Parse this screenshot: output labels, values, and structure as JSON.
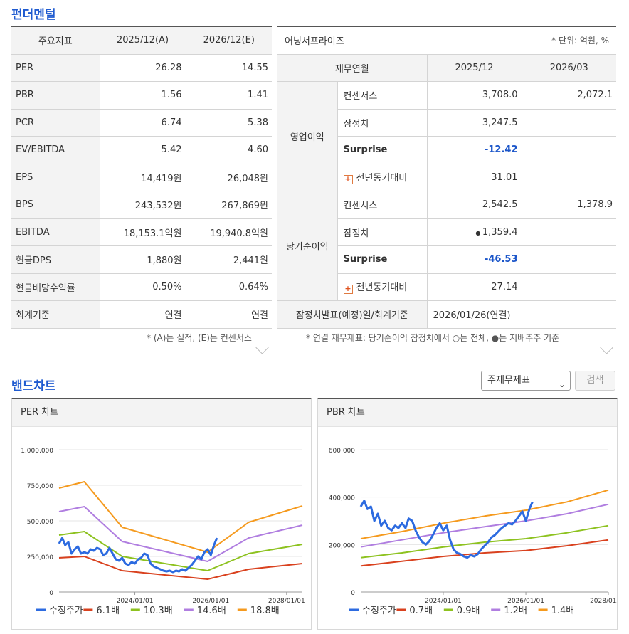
{
  "fundamentals": {
    "title": "펀더멘털",
    "headers": [
      "주요지표",
      "2025/12(A)",
      "2026/12(E)"
    ],
    "rows": [
      [
        "PER",
        "26.28",
        "14.55"
      ],
      [
        "PBR",
        "1.56",
        "1.41"
      ],
      [
        "PCR",
        "6.74",
        "5.38"
      ],
      [
        "EV/EBITDA",
        "5.42",
        "4.60"
      ],
      [
        "EPS",
        "14,419원",
        "26,048원"
      ],
      [
        "BPS",
        "243,532원",
        "267,869원"
      ],
      [
        "EBITDA",
        "18,153.1억원",
        "19,940.8억원"
      ],
      [
        "현금DPS",
        "1,880원",
        "2,441원"
      ],
      [
        "현금배당수익률",
        "0.50%",
        "0.64%"
      ],
      [
        "회계기준",
        "연결",
        "연결"
      ]
    ],
    "note": "* (A)는 실적, (E)는 컨센서스"
  },
  "earnings": {
    "title": "어닝서프라이즈",
    "unit": "* 단위: 억원, %",
    "headers": [
      "재무연월",
      "2025/12",
      "2026/03"
    ],
    "groups": [
      {
        "name": "영업이익",
        "rows": [
          {
            "label": "컨센서스",
            "v1": "3,708.0",
            "v2": "2,072.1"
          },
          {
            "label": "잠정치",
            "v1": "3,247.5",
            "v2": ""
          },
          {
            "label": "Surprise",
            "v1": "-12.42",
            "v2": ""
          },
          {
            "label": "전년동기대비",
            "v1": "31.01",
            "v2": ""
          }
        ]
      },
      {
        "name": "당기순이익",
        "rows": [
          {
            "label": "컨센서스",
            "v1": "2,542.5",
            "v2": "1,378.9"
          },
          {
            "label": "잠정치",
            "v1": "1,359.4",
            "v2": ""
          },
          {
            "label": "Surprise",
            "v1": "-46.53",
            "v2": ""
          },
          {
            "label": "전년동기대비",
            "v1": "27.14",
            "v2": ""
          }
        ]
      }
    ],
    "footer_label": "잠정치발표(예정)일/회계기준",
    "footer_value": "2026/01/26(연결)",
    "note": "* 연결 재무제표: 당기순이익 잠정치에서 ○는 전체, ●는 지배주주 기준"
  },
  "band": {
    "title": "밴드차트",
    "select_value": "주재무제표",
    "search_label": "검색",
    "icons": {
      "dropdown": "chevron-down-icon",
      "expand": "chevron-down-icon",
      "plus": "plus-box-icon"
    }
  },
  "chart_data": [
    {
      "type": "line",
      "title": "PER 차트",
      "ylim": [
        0,
        1000000
      ],
      "y_ticks": [
        "1,000,000",
        "750,000",
        "500,000",
        "250,000",
        "0"
      ],
      "x_ticks": [
        "2024/01/01",
        "2026/01/01",
        "2028/01/01"
      ],
      "x_range": [
        "2022/01/01",
        "2028/06/01"
      ],
      "grid": true,
      "legend_position": "bottom",
      "series": [
        {
          "name": "수정주가",
          "color": "#2d6be0",
          "points": [
            [
              "2022/01/01",
              340000
            ],
            [
              "2022/02/01",
              380000
            ],
            [
              "2022/03/01",
              330000
            ],
            [
              "2022/04/01",
              350000
            ],
            [
              "2022/05/01",
              270000
            ],
            [
              "2022/06/01",
              300000
            ],
            [
              "2022/07/01",
              320000
            ],
            [
              "2022/08/01",
              270000
            ],
            [
              "2022/09/01",
              280000
            ],
            [
              "2022/10/01",
              270000
            ],
            [
              "2022/11/01",
              300000
            ],
            [
              "2022/12/01",
              290000
            ],
            [
              "2023/01/01",
              310000
            ],
            [
              "2023/02/01",
              300000
            ],
            [
              "2023/03/01",
              260000
            ],
            [
              "2023/04/01",
              270000
            ],
            [
              "2023/05/01",
              310000
            ],
            [
              "2023/06/01",
              270000
            ],
            [
              "2023/07/01",
              230000
            ],
            [
              "2023/08/01",
              220000
            ],
            [
              "2023/09/01",
              240000
            ],
            [
              "2023/10/01",
              200000
            ],
            [
              "2023/11/01",
              190000
            ],
            [
              "2023/12/01",
              210000
            ],
            [
              "2024/01/01",
              200000
            ],
            [
              "2024/02/01",
              230000
            ],
            [
              "2024/03/01",
              240000
            ],
            [
              "2024/04/01",
              270000
            ],
            [
              "2024/05/01",
              260000
            ],
            [
              "2024/06/01",
              200000
            ],
            [
              "2024/07/01",
              180000
            ],
            [
              "2024/08/01",
              170000
            ],
            [
              "2024/09/01",
              160000
            ],
            [
              "2024/10/01",
              150000
            ],
            [
              "2024/11/01",
              145000
            ],
            [
              "2024/12/01",
              150000
            ],
            [
              "2025/01/01",
              140000
            ],
            [
              "2025/02/01",
              150000
            ],
            [
              "2025/03/01",
              145000
            ],
            [
              "2025/04/01",
              160000
            ],
            [
              "2025/05/01",
              150000
            ],
            [
              "2025/06/01",
              170000
            ],
            [
              "2025/07/01",
              190000
            ],
            [
              "2025/08/01",
              220000
            ],
            [
              "2025/09/01",
              250000
            ],
            [
              "2025/10/01",
              230000
            ],
            [
              "2025/11/01",
              280000
            ],
            [
              "2025/12/01",
              300000
            ],
            [
              "2026/01/01",
              260000
            ],
            [
              "2026/02/01",
              330000
            ],
            [
              "2026/03/01",
              380000
            ]
          ]
        },
        {
          "name": "6.1배",
          "color": "#d9411e",
          "points": [
            [
              "2022/01/01",
              240000
            ],
            [
              "2022/09/01",
              250000
            ],
            [
              "2023/09/01",
              150000
            ],
            [
              "2025/12/01",
              90000
            ],
            [
              "2027/01/01",
              160000
            ],
            [
              "2028/06/01",
              200000
            ]
          ]
        },
        {
          "name": "10.3배",
          "color": "#8dc21f",
          "points": [
            [
              "2022/01/01",
              400000
            ],
            [
              "2022/09/01",
              425000
            ],
            [
              "2023/09/01",
              250000
            ],
            [
              "2025/12/01",
              150000
            ],
            [
              "2027/01/01",
              270000
            ],
            [
              "2028/06/01",
              335000
            ]
          ]
        },
        {
          "name": "14.6배",
          "color": "#b07ee0",
          "points": [
            [
              "2022/01/01",
              565000
            ],
            [
              "2022/09/01",
              600000
            ],
            [
              "2023/09/01",
              355000
            ],
            [
              "2025/12/01",
              215000
            ],
            [
              "2027/01/01",
              380000
            ],
            [
              "2028/06/01",
              470000
            ]
          ]
        },
        {
          "name": "18.8배",
          "color": "#f59a1e",
          "points": [
            [
              "2022/01/01",
              730000
            ],
            [
              "2022/09/01",
              775000
            ],
            [
              "2023/09/01",
              455000
            ],
            [
              "2025/12/01",
              280000
            ],
            [
              "2027/01/01",
              490000
            ],
            [
              "2028/06/01",
              605000
            ]
          ]
        }
      ]
    },
    {
      "type": "line",
      "title": "PBR 차트",
      "ylim": [
        0,
        600000
      ],
      "y_ticks": [
        "600,000",
        "400,000",
        "200,000",
        "0"
      ],
      "x_ticks": [
        "2024/01/01",
        "2026/01/01",
        "2028/01/01"
      ],
      "x_range": [
        "2022/01/01",
        "2028/01/01"
      ],
      "grid": true,
      "legend_position": "bottom",
      "series": [
        {
          "name": "수정주가",
          "color": "#2d6be0",
          "points": [
            [
              "2022/01/01",
              360000
            ],
            [
              "2022/02/01",
              385000
            ],
            [
              "2022/03/01",
              350000
            ],
            [
              "2022/04/01",
              360000
            ],
            [
              "2022/05/01",
              300000
            ],
            [
              "2022/06/01",
              330000
            ],
            [
              "2022/07/01",
              280000
            ],
            [
              "2022/08/01",
              300000
            ],
            [
              "2022/09/01",
              270000
            ],
            [
              "2022/10/01",
              260000
            ],
            [
              "2022/11/01",
              280000
            ],
            [
              "2022/12/01",
              270000
            ],
            [
              "2023/01/01",
              290000
            ],
            [
              "2023/02/01",
              270000
            ],
            [
              "2023/03/01",
              310000
            ],
            [
              "2023/04/01",
              300000
            ],
            [
              "2023/05/01",
              260000
            ],
            [
              "2023/06/01",
              230000
            ],
            [
              "2023/07/01",
              210000
            ],
            [
              "2023/08/01",
              200000
            ],
            [
              "2023/09/01",
              215000
            ],
            [
              "2023/10/01",
              240000
            ],
            [
              "2023/11/01",
              270000
            ],
            [
              "2023/12/01",
              290000
            ],
            [
              "2024/01/01",
              260000
            ],
            [
              "2024/02/01",
              280000
            ],
            [
              "2024/03/01",
              220000
            ],
            [
              "2024/04/01",
              180000
            ],
            [
              "2024/05/01",
              165000
            ],
            [
              "2024/06/01",
              160000
            ],
            [
              "2024/07/01",
              150000
            ],
            [
              "2024/08/01",
              145000
            ],
            [
              "2024/09/01",
              155000
            ],
            [
              "2024/10/01",
              150000
            ],
            [
              "2024/11/01",
              160000
            ],
            [
              "2024/12/01",
              180000
            ],
            [
              "2025/01/01",
              195000
            ],
            [
              "2025/02/01",
              210000
            ],
            [
              "2025/03/01",
              230000
            ],
            [
              "2025/04/01",
              240000
            ],
            [
              "2025/05/01",
              255000
            ],
            [
              "2025/06/01",
              270000
            ],
            [
              "2025/07/01",
              280000
            ],
            [
              "2025/08/01",
              290000
            ],
            [
              "2025/09/01",
              285000
            ],
            [
              "2025/10/01",
              300000
            ],
            [
              "2025/11/01",
              320000
            ],
            [
              "2025/12/01",
              340000
            ],
            [
              "2026/01/01",
              300000
            ],
            [
              "2026/02/01",
              350000
            ],
            [
              "2026/03/01",
              380000
            ]
          ]
        },
        {
          "name": "0.7배",
          "color": "#d9411e",
          "points": [
            [
              "2022/01/01",
              110000
            ],
            [
              "2023/01/01",
              130000
            ],
            [
              "2024/01/01",
              150000
            ],
            [
              "2025/01/01",
              165000
            ],
            [
              "2026/01/01",
              175000
            ],
            [
              "2027/01/01",
              195000
            ],
            [
              "2028/01/01",
              220000
            ]
          ]
        },
        {
          "name": "0.9배",
          "color": "#8dc21f",
          "points": [
            [
              "2022/01/01",
              145000
            ],
            [
              "2023/01/01",
              165000
            ],
            [
              "2024/01/01",
              190000
            ],
            [
              "2025/01/01",
              210000
            ],
            [
              "2026/01/01",
              225000
            ],
            [
              "2027/01/01",
              250000
            ],
            [
              "2028/01/01",
              280000
            ]
          ]
        },
        {
          "name": "1.2배",
          "color": "#b07ee0",
          "points": [
            [
              "2022/01/01",
              190000
            ],
            [
              "2023/01/01",
              220000
            ],
            [
              "2024/01/01",
              250000
            ],
            [
              "2025/01/01",
              275000
            ],
            [
              "2026/01/01",
              300000
            ],
            [
              "2027/01/01",
              330000
            ],
            [
              "2028/01/01",
              370000
            ]
          ]
        },
        {
          "name": "1.4배",
          "color": "#f59a1e",
          "points": [
            [
              "2022/01/01",
              225000
            ],
            [
              "2023/01/01",
              255000
            ],
            [
              "2024/01/01",
              290000
            ],
            [
              "2025/01/01",
              320000
            ],
            [
              "2026/01/01",
              345000
            ],
            [
              "2027/01/01",
              380000
            ],
            [
              "2028/01/01",
              430000
            ]
          ]
        }
      ]
    }
  ]
}
